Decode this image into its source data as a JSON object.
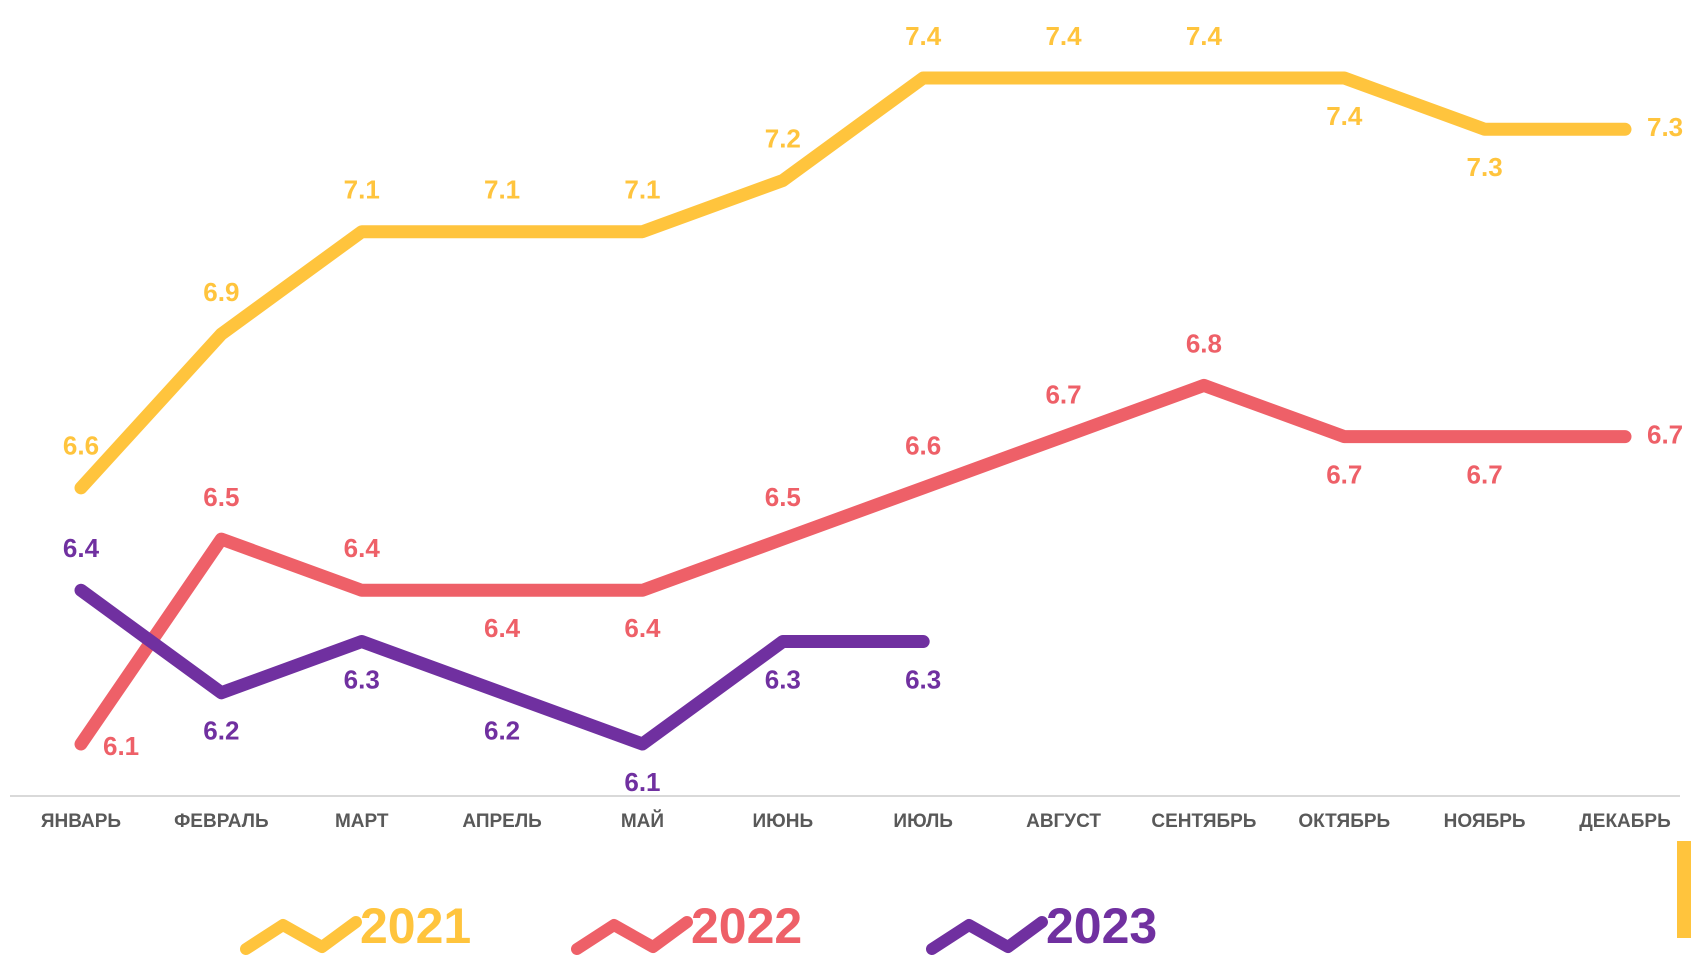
{
  "chart_data": {
    "type": "line",
    "categories": [
      "ЯНВАРЬ",
      "ФЕВРАЛЬ",
      "МАРТ",
      "АПРЕЛЬ",
      "МАЙ",
      "ИЮНЬ",
      "ИЮЛЬ",
      "АВГУСТ",
      "СЕНТЯБРЬ",
      "ОКТЯБРЬ",
      "НОЯБРЬ",
      "ДЕКАБРЬ"
    ],
    "series": [
      {
        "name": "2021",
        "color": "#FFC43D",
        "values": [
          6.6,
          6.9,
          7.1,
          7.1,
          7.1,
          7.2,
          7.4,
          7.4,
          7.4,
          7.4,
          7.3,
          7.3
        ]
      },
      {
        "name": "2022",
        "color": "#EE6068",
        "values": [
          6.1,
          6.5,
          6.4,
          6.4,
          6.4,
          6.5,
          6.6,
          6.7,
          6.8,
          6.7,
          6.7,
          6.7
        ]
      },
      {
        "name": "2023",
        "color": "#7030A0",
        "values": [
          6.4,
          6.2,
          6.3,
          6.2,
          6.1,
          6.3,
          6.3,
          null,
          null,
          null,
          null,
          null
        ]
      }
    ]
  }
}
